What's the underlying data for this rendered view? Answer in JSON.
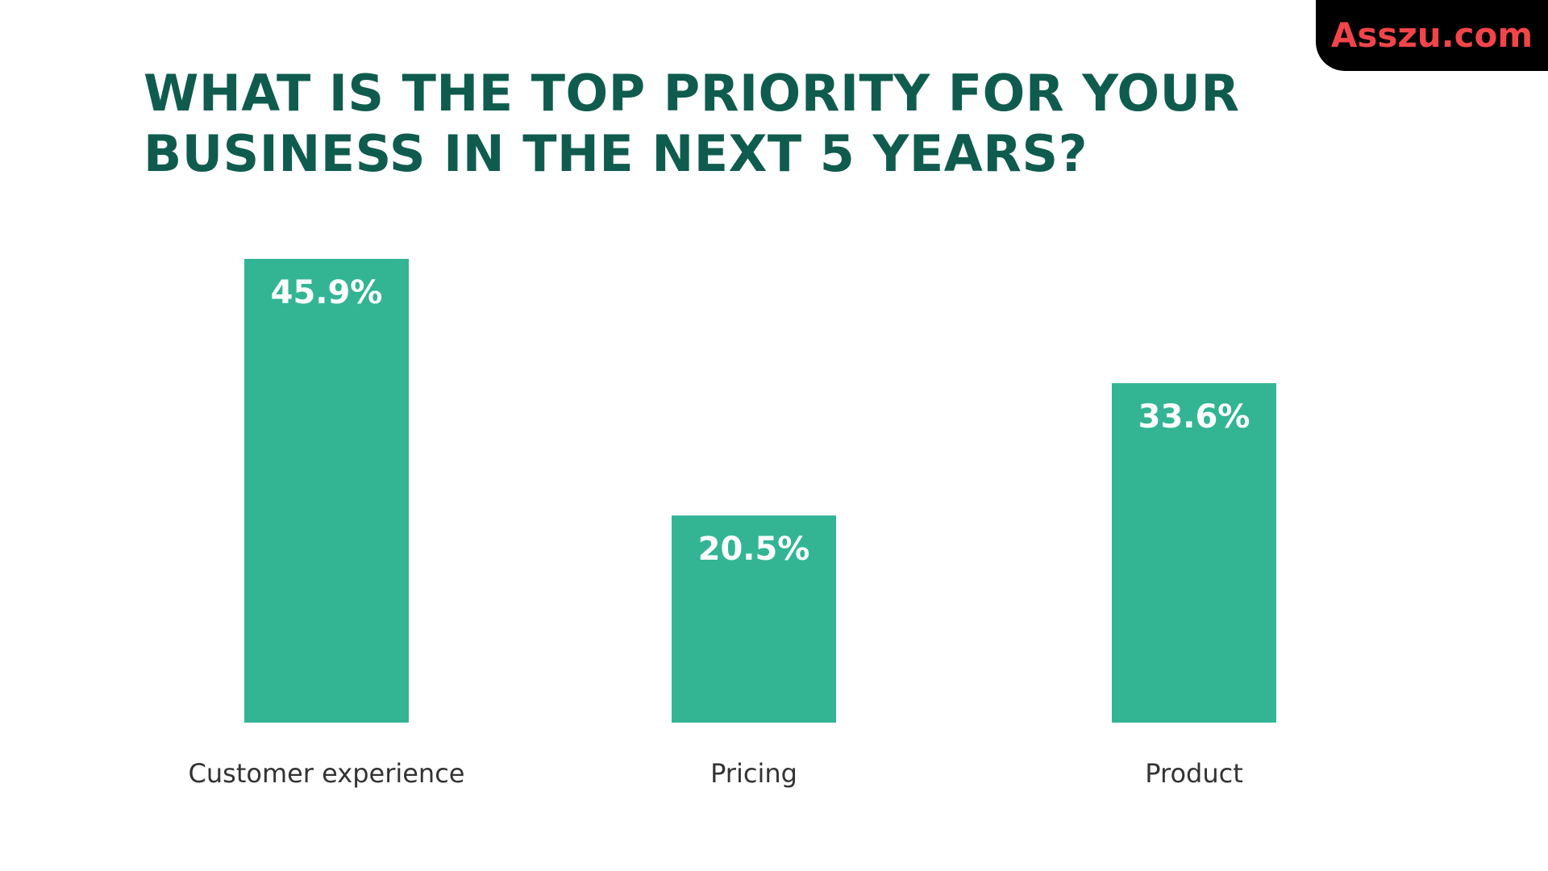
{
  "watermark": "Asszu.com",
  "colors": {
    "bar": "#33b594",
    "title": "#0f5c4e",
    "bar_label": "#ffffff",
    "category_label": "#333333",
    "watermark_bg": "#000000",
    "watermark_text": "#f2454a"
  },
  "chart_data": {
    "type": "bar",
    "title_lines": [
      "WHAT IS THE TOP PRIORITY FOR YOUR",
      "BUSINESS IN THE NEXT 5 YEARS?"
    ],
    "categories": [
      "Customer experience",
      "Pricing",
      "Product"
    ],
    "values": [
      45.9,
      20.5,
      33.6
    ],
    "data_labels": [
      "45.9%",
      "20.5%",
      "33.6%"
    ],
    "xlabel": "",
    "ylabel": "",
    "ylim": [
      0,
      45.9
    ],
    "grid": false,
    "legend": "none"
  }
}
